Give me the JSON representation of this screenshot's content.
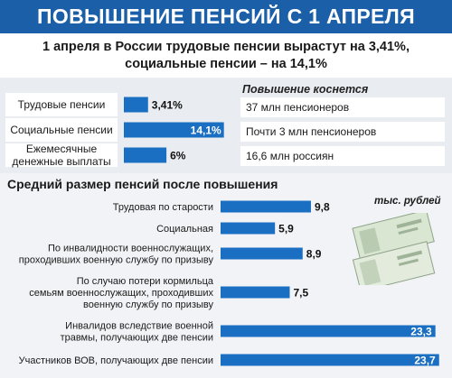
{
  "title": "ПОВЫШЕНИЕ ПЕНСИЙ С 1 АПРЕЛЯ",
  "lead_line1": "1 апреля в России трудовые пенсии вырастут на 3,41%,",
  "lead_line2": "социальные пенсии – на 14,1%",
  "affects": {
    "heading": "Повышение коснется",
    "items": [
      "37 млн пенсионеров",
      "Почти 3 млн пенсионеров",
      "16,6 млн россиян"
    ]
  },
  "section_title": "Средний размер пенсий после повышения",
  "unit_label": "тыс. рублей",
  "colors": {
    "title_bg": "#1b5fa8",
    "bar": "#1b6fc2",
    "band": "#e9edf1"
  },
  "chart_data": [
    {
      "type": "bar",
      "orientation": "horizontal",
      "categories": [
        [
          "Трудовые пенсии"
        ],
        [
          "Социальные пенсии"
        ],
        [
          "Ежемесячные",
          "денежные выплаты"
        ]
      ],
      "values": [
        3.41,
        14.1,
        6
      ],
      "value_labels": [
        "3,41%",
        "14,1%",
        "6%"
      ],
      "label_inside": [
        false,
        true,
        false
      ]
    },
    {
      "type": "bar",
      "orientation": "horizontal",
      "title": "Средний размер пенсий после повышения",
      "unit": "тыс. рублей",
      "categories": [
        [
          "Трудовая по старости"
        ],
        [
          "Социальная"
        ],
        [
          "По инвалидности военнослужащих,",
          "проходивших военную службу по призыву"
        ],
        [
          "По случаю потери кормильца",
          "семьям военнослужащих, проходивших",
          "военную службу по призыву"
        ],
        [
          "Инвалидов вследствие военной",
          "травмы, получающих две пенсии"
        ],
        [
          "Участников ВОВ, получающих две пенсии"
        ]
      ],
      "values": [
        9.8,
        5.9,
        8.9,
        7.5,
        23.3,
        23.7
      ],
      "value_labels": [
        "9,8",
        "5,9",
        "8,9",
        "7,5",
        "23,3",
        "23,7"
      ],
      "label_inside": [
        false,
        false,
        false,
        false,
        true,
        true
      ]
    }
  ]
}
